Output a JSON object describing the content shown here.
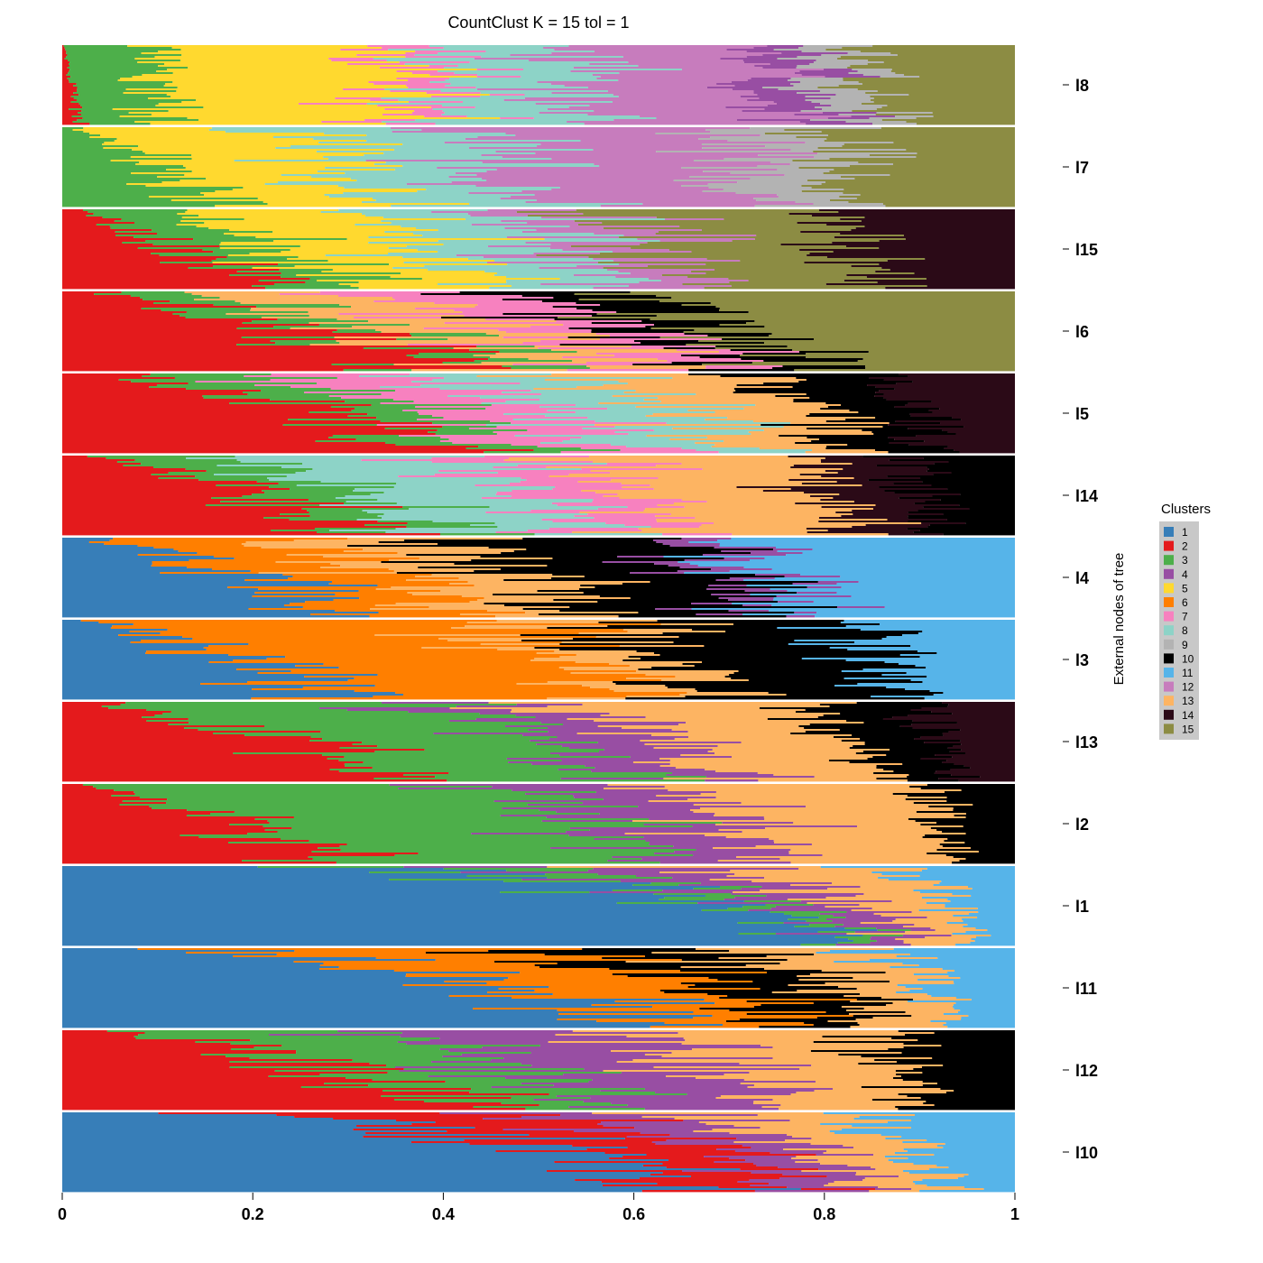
{
  "chart_data": {
    "type": "bar",
    "subtype": "stacked-structure-plot",
    "orientation": "horizontal",
    "title": "CountClust K =  15 tol =  1",
    "ylabel": "External nodes of tree",
    "xlim": [
      0,
      1
    ],
    "x_ticks": [
      "0",
      "0.2",
      "0.4",
      "0.6",
      "0.8",
      "1"
    ],
    "legend": {
      "title": "Clusters",
      "placement": "right",
      "entries": [
        {
          "label": "1",
          "color": "#377eb8"
        },
        {
          "label": "2",
          "color": "#e41a1c"
        },
        {
          "label": "3",
          "color": "#4daf4a"
        },
        {
          "label": "4",
          "color": "#984ea3"
        },
        {
          "label": "5",
          "color": "#ffd92f"
        },
        {
          "label": "6",
          "color": "#ff7f00"
        },
        {
          "label": "7",
          "color": "#f781bf"
        },
        {
          "label": "8",
          "color": "#8dd3c7"
        },
        {
          "label": "9",
          "color": "#b3b3b3"
        },
        {
          "label": "10",
          "color": "#000000"
        },
        {
          "label": "11",
          "color": "#56b4e9"
        },
        {
          "label": "12",
          "color": "#c77cbd"
        },
        {
          "label": "13",
          "color": "#fdb462"
        },
        {
          "label": "14",
          "color": "#2b0a17"
        },
        {
          "label": "15",
          "color": "#8c8c43"
        }
      ]
    },
    "groups": [
      {
        "name": "l8",
        "composition": [
          {
            "cluster": "2",
            "value": 0.01
          },
          {
            "cluster": "3",
            "value": 0.09
          },
          {
            "cluster": "5",
            "value": 0.25
          },
          {
            "cluster": "7",
            "value": 0.05
          },
          {
            "cluster": "8",
            "value": 0.14
          },
          {
            "cluster": "12",
            "value": 0.2
          },
          {
            "cluster": "4",
            "value": 0.06
          },
          {
            "cluster": "9",
            "value": 0.06
          },
          {
            "cluster": "15",
            "value": 0.14
          }
        ]
      },
      {
        "name": "l7",
        "composition": [
          {
            "cluster": "3",
            "value": 0.1
          },
          {
            "cluster": "5",
            "value": 0.2
          },
          {
            "cluster": "8",
            "value": 0.17
          },
          {
            "cluster": "12",
            "value": 0.25
          },
          {
            "cluster": "9",
            "value": 0.1
          },
          {
            "cluster": "15",
            "value": 0.18
          }
        ]
      },
      {
        "name": "l15",
        "composition": [
          {
            "cluster": "2",
            "value": 0.12
          },
          {
            "cluster": "3",
            "value": 0.1
          },
          {
            "cluster": "5",
            "value": 0.17
          },
          {
            "cluster": "8",
            "value": 0.14
          },
          {
            "cluster": "12",
            "value": 0.1
          },
          {
            "cluster": "15",
            "value": 0.2
          },
          {
            "cluster": "14",
            "value": 0.17
          }
        ]
      },
      {
        "name": "l6",
        "composition": [
          {
            "cluster": "2",
            "value": 0.26
          },
          {
            "cluster": "3",
            "value": 0.08
          },
          {
            "cluster": "13",
            "value": 0.14
          },
          {
            "cluster": "7",
            "value": 0.12
          },
          {
            "cluster": "10",
            "value": 0.1
          },
          {
            "cluster": "15",
            "value": 0.3
          }
        ]
      },
      {
        "name": "l5",
        "composition": [
          {
            "cluster": "2",
            "value": 0.28
          },
          {
            "cluster": "3",
            "value": 0.1
          },
          {
            "cluster": "7",
            "value": 0.14
          },
          {
            "cluster": "8",
            "value": 0.14
          },
          {
            "cluster": "13",
            "value": 0.14
          },
          {
            "cluster": "10",
            "value": 0.1
          },
          {
            "cluster": "14",
            "value": 0.1
          }
        ]
      },
      {
        "name": "l14",
        "composition": [
          {
            "cluster": "2",
            "value": 0.22
          },
          {
            "cluster": "3",
            "value": 0.1
          },
          {
            "cluster": "8",
            "value": 0.18
          },
          {
            "cluster": "7",
            "value": 0.1
          },
          {
            "cluster": "13",
            "value": 0.2
          },
          {
            "cluster": "14",
            "value": 0.1
          },
          {
            "cluster": "10",
            "value": 0.1
          }
        ]
      },
      {
        "name": "l4",
        "composition": [
          {
            "cluster": "1",
            "value": 0.2
          },
          {
            "cluster": "6",
            "value": 0.15
          },
          {
            "cluster": "13",
            "value": 0.15
          },
          {
            "cluster": "10",
            "value": 0.2
          },
          {
            "cluster": "4",
            "value": 0.05
          },
          {
            "cluster": "11",
            "value": 0.25
          }
        ]
      },
      {
        "name": "l3",
        "composition": [
          {
            "cluster": "1",
            "value": 0.18
          },
          {
            "cluster": "6",
            "value": 0.35
          },
          {
            "cluster": "13",
            "value": 0.1
          },
          {
            "cluster": "10",
            "value": 0.22
          },
          {
            "cluster": "11",
            "value": 0.15
          }
        ]
      },
      {
        "name": "l13",
        "composition": [
          {
            "cluster": "2",
            "value": 0.22
          },
          {
            "cluster": "3",
            "value": 0.28
          },
          {
            "cluster": "4",
            "value": 0.12
          },
          {
            "cluster": "13",
            "value": 0.2
          },
          {
            "cluster": "10",
            "value": 0.1
          },
          {
            "cluster": "14",
            "value": 0.08
          }
        ]
      },
      {
        "name": "l2",
        "composition": [
          {
            "cluster": "2",
            "value": 0.18
          },
          {
            "cluster": "3",
            "value": 0.37
          },
          {
            "cluster": "4",
            "value": 0.15
          },
          {
            "cluster": "13",
            "value": 0.22
          },
          {
            "cluster": "10",
            "value": 0.08
          }
        ]
      },
      {
        "name": "l1",
        "composition": [
          {
            "cluster": "1",
            "value": 0.7
          },
          {
            "cluster": "3",
            "value": 0.06
          },
          {
            "cluster": "4",
            "value": 0.08
          },
          {
            "cluster": "13",
            "value": 0.1
          },
          {
            "cluster": "11",
            "value": 0.06
          }
        ]
      },
      {
        "name": "l11",
        "composition": [
          {
            "cluster": "1",
            "value": 0.5
          },
          {
            "cluster": "6",
            "value": 0.2
          },
          {
            "cluster": "10",
            "value": 0.12
          },
          {
            "cluster": "13",
            "value": 0.1
          },
          {
            "cluster": "11",
            "value": 0.08
          }
        ]
      },
      {
        "name": "l12",
        "composition": [
          {
            "cluster": "2",
            "value": 0.3
          },
          {
            "cluster": "3",
            "value": 0.18
          },
          {
            "cluster": "4",
            "value": 0.2
          },
          {
            "cluster": "13",
            "value": 0.2
          },
          {
            "cluster": "10",
            "value": 0.12
          }
        ]
      },
      {
        "name": "l10",
        "composition": [
          {
            "cluster": "1",
            "value": 0.55
          },
          {
            "cluster": "2",
            "value": 0.15
          },
          {
            "cluster": "4",
            "value": 0.1
          },
          {
            "cluster": "13",
            "value": 0.1
          },
          {
            "cluster": "11",
            "value": 0.1
          }
        ]
      }
    ]
  }
}
